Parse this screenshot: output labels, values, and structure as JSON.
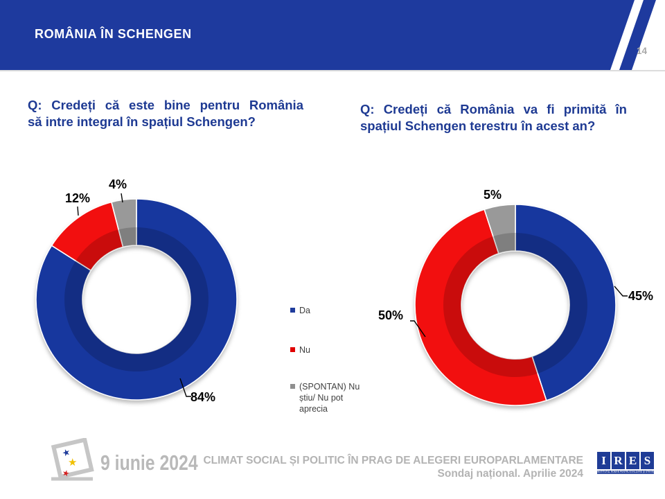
{
  "header": {
    "title": "ROMÂNIA ÎN SCHENGEN",
    "page_number": "14",
    "bar_color": "#1e3a9e"
  },
  "questions": {
    "left": {
      "lines": [
        "Q: Credeți că este bine pentru România",
        "să intre integral în spațiul Schengen?"
      ]
    },
    "right": {
      "lines": [
        "Q: Credeți că România va fi primită în",
        "spațiul Schengen terestru în acest an?"
      ]
    }
  },
  "chart_data": [
    {
      "type": "pie",
      "subtype": "donut",
      "title": "Q: Credeți că este bine pentru România să intre integral în spațiul Schengen?",
      "categories": [
        "Da",
        "Nu",
        "(SPONTAN) Nu știu/ Nu pot aprecia"
      ],
      "values": [
        84,
        12,
        4
      ],
      "labels_pct": [
        "84%",
        "12%",
        "4%"
      ],
      "colors": [
        "#17379e",
        "#f20f0f",
        "#999999"
      ],
      "start_angle_deg": 0,
      "direction": "clockwise",
      "legend_position": "right-shared"
    },
    {
      "type": "pie",
      "subtype": "donut",
      "title": "Q: Credeți că România va fi primită în spațiul Schengen terestru în acest an?",
      "categories": [
        "Da",
        "Nu",
        "(SPONTAN) Nu știu/ Nu pot aprecia"
      ],
      "values": [
        45,
        50,
        5
      ],
      "labels_pct": [
        "45%",
        "50%",
        "5%"
      ],
      "colors": [
        "#17379e",
        "#f20f0f",
        "#999999"
      ],
      "start_angle_deg": 0,
      "direction": "clockwise",
      "legend_position": "left-shared"
    }
  ],
  "legend": {
    "items": [
      {
        "label": "Da",
        "color": "#1f3c9c"
      },
      {
        "label": "Nu",
        "color": "#e00000"
      },
      {
        "label": "(SPONTAN) Nu știu/ Nu pot aprecia",
        "color": "#8f8f8f"
      }
    ]
  },
  "footer": {
    "date": "9 iunie 2024",
    "line1": "CLIMAT SOCIAL ȘI POLITIC ÎN PRAG DE ALEGERI EUROPARLAMENTARE",
    "line2": "Sondaj național. Aprilie 2024",
    "logo_letters": [
      "I",
      "R",
      "E",
      "S"
    ],
    "logo_tagline": "INSTITUTUL ROMÂN PENTRU EVALUARE ȘI STRATEGIE"
  }
}
